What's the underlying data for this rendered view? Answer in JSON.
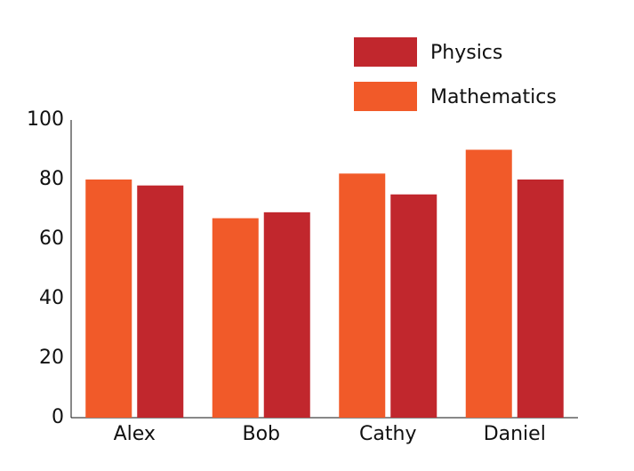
{
  "chart_data": {
    "type": "bar",
    "categories": [
      "Alex",
      "Bob",
      "Cathy",
      "Daniel"
    ],
    "series": [
      {
        "name": "Mathematics",
        "color": "#f15a29",
        "values": [
          80,
          67,
          82,
          90
        ]
      },
      {
        "name": "Physics",
        "color": "#c1272d",
        "values": [
          78,
          69,
          75,
          80
        ]
      }
    ],
    "ylim": [
      0,
      100
    ],
    "yticks": [
      0,
      20,
      40,
      60,
      80,
      100
    ],
    "grid": false,
    "legend": "top-right"
  }
}
